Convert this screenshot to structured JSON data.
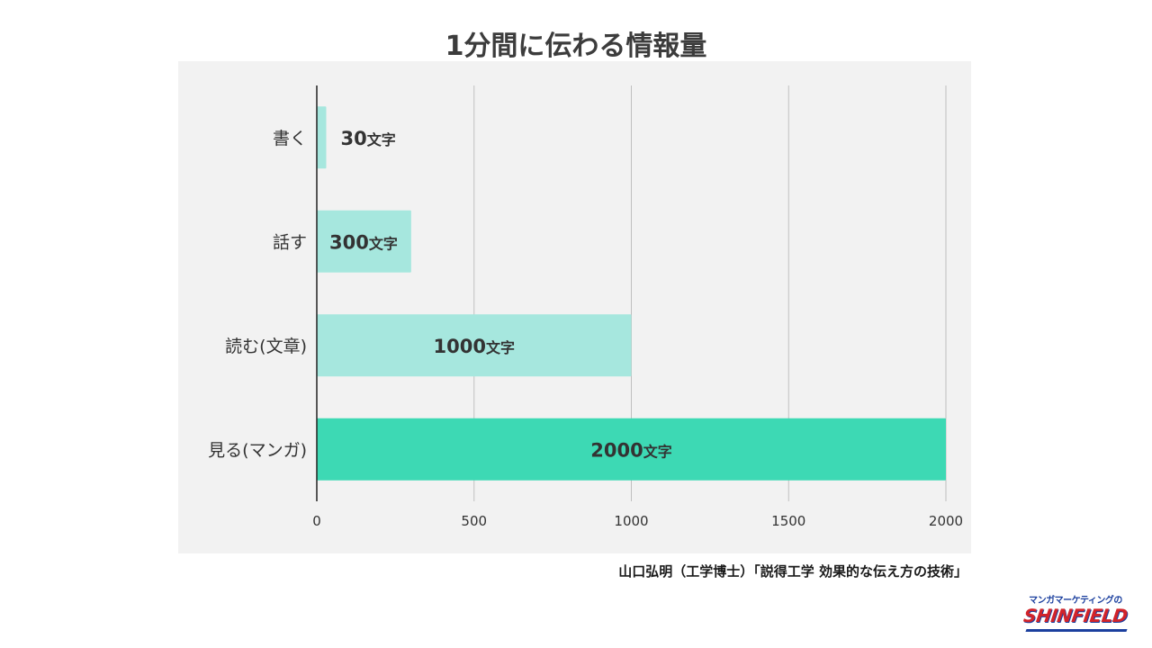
{
  "chart_data": {
    "type": "bar",
    "orientation": "horizontal",
    "title": "1分間に伝わる情報量",
    "categories": [
      "書く",
      "話す",
      "読む(文章)",
      "見る(マンガ)"
    ],
    "values": [
      30,
      300,
      1000,
      2000
    ],
    "value_labels": [
      {
        "num": "30",
        "unit": "文字"
      },
      {
        "num": "300",
        "unit": "文字"
      },
      {
        "num": "1000",
        "unit": "文字"
      },
      {
        "num": "2000",
        "unit": "文字"
      }
    ],
    "xlim": [
      0,
      2000
    ],
    "xticks": [
      0,
      500,
      1000,
      1500,
      2000
    ],
    "grid": "vertical",
    "colors": [
      "#a6e7de",
      "#a6e7de",
      "#a6e7de",
      "#3dd9b4"
    ],
    "background": "#f2f2f2"
  },
  "source": "山口弘明（工学博士）「説得工学 効果的な伝え方の技術」",
  "logo": {
    "tagline": "マンガマーケティングの",
    "name": "SHINFIELD",
    "colors": {
      "tagline": "#1b3f9e",
      "name": "#d2232a"
    }
  }
}
